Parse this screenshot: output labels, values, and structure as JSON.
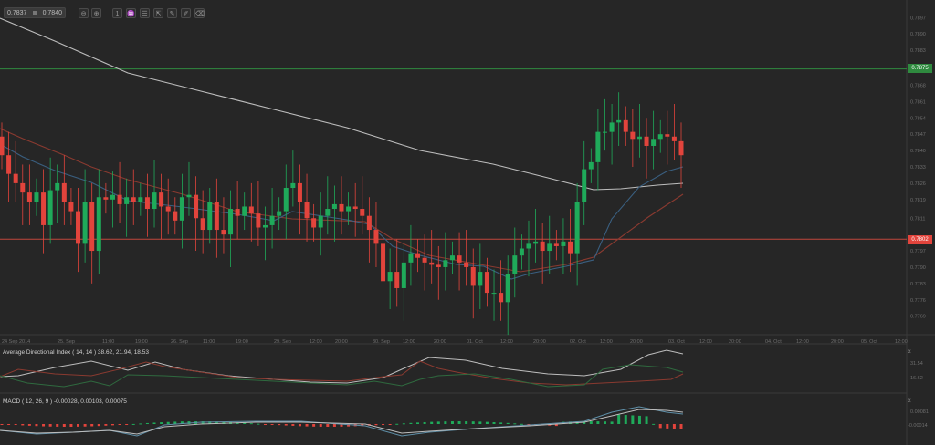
{
  "toolbar": {
    "bid": "0.7837",
    "ask": "0.7840",
    "buttons": [
      {
        "name": "zoom-out-icon",
        "glyph": "⊖"
      },
      {
        "name": "zoom-in-icon",
        "glyph": "⊕"
      },
      {
        "name": "timeframe-icon",
        "glyph": "1"
      },
      {
        "name": "chart-type-icon",
        "glyph": "♒"
      },
      {
        "name": "indicators-icon",
        "glyph": "☰"
      },
      {
        "name": "export-icon",
        "glyph": "⇱"
      },
      {
        "name": "drawing-tools-icon",
        "glyph": "✎"
      },
      {
        "name": "edit-icon",
        "glyph": "✐"
      },
      {
        "name": "clear-icon",
        "glyph": "⌫"
      }
    ]
  },
  "colors": {
    "background": "#262626",
    "grid_line": "#333333",
    "bull": "#1faa5a",
    "bear": "#e2443c",
    "ma_fast": "#3a5f80",
    "ma_mid": "#8a3a30",
    "ma_slow": "#bdbdbd",
    "resistance": "#2f8a3f",
    "support": "#c0473c"
  },
  "price_tags": {
    "resistance": "0.7875",
    "support": "0.7802"
  },
  "adx": {
    "title": "Average Directional Index ( 14, 14 ) 38.62, 21.94, 18.53",
    "axis": [
      "31.54",
      "16.62"
    ]
  },
  "macd": {
    "title": "MACD ( 12, 26, 9 ) -0.00028, 0.00103, 0.00075",
    "axis": [
      "0.00081",
      "-0.00014"
    ]
  },
  "chart_data": {
    "type": "candlestick",
    "title": "",
    "instrument_bid": 0.7837,
    "instrument_ask": 0.784,
    "y_axis_ticks": [
      "0.7897",
      "0.7890",
      "0.7883",
      "0.7868",
      "0.7861",
      "0.7854",
      "0.7847",
      "0.7840",
      "0.7833",
      "0.7826",
      "0.7819",
      "0.7811",
      "0.7797",
      "0.7790",
      "0.7783",
      "0.7776",
      "0.7769"
    ],
    "x_axis_ticks": [
      "24 Sep 2014",
      "25. Sep",
      "11:00",
      "19:00",
      "26. Sep",
      "11:00",
      "19:00",
      "29. Sep",
      "12:00",
      "20:00",
      "30. Sep",
      "12:00",
      "20:00",
      "01. Oct",
      "12:00",
      "20:00",
      "02. Oct",
      "12:00",
      "20:00",
      "03. Oct",
      "12:00",
      "20:00",
      "04. Oct",
      "12:00",
      "20:00",
      "05. Oct",
      "12:00"
    ],
    "ylim": [
      0.7763,
      0.7903
    ],
    "horizontal_lines": [
      {
        "label": "resistance",
        "value": 0.7875,
        "color": "#2f8a3f"
      },
      {
        "label": "support",
        "value": 0.7802,
        "color": "#c0473c"
      }
    ],
    "candles_close": [
      0.7838,
      0.783,
      0.7826,
      0.7822,
      0.7818,
      0.7822,
      0.7808,
      0.7823,
      0.7826,
      0.7818,
      0.7814,
      0.78,
      0.7818,
      0.7797,
      0.782,
      0.7819,
      0.7821,
      0.7817,
      0.782,
      0.7818,
      0.782,
      0.7815,
      0.7822,
      0.7816,
      0.7814,
      0.781,
      0.782,
      0.7821,
      0.7811,
      0.7806,
      0.7818,
      0.7806,
      0.7804,
      0.7815,
      0.7812,
      0.7816,
      0.7813,
      0.7807,
      0.7808,
      0.7812,
      0.7814,
      0.7824,
      0.7826,
      0.7818,
      0.7811,
      0.7807,
      0.7812,
      0.7815,
      0.7817,
      0.7814,
      0.7816,
      0.7815,
      0.7812,
      0.7806,
      0.78,
      0.7784,
      0.7788,
      0.7781,
      0.7792,
      0.7796,
      0.7794,
      0.7792,
      0.7791,
      0.779,
      0.7793,
      0.7795,
      0.7792,
      0.779,
      0.7782,
      0.7788,
      0.7779,
      0.7779,
      0.7775,
      0.7787,
      0.7795,
      0.7798,
      0.78,
      0.7801,
      0.7797,
      0.78,
      0.7799,
      0.7801,
      0.7796,
      0.7818,
      0.7832,
      0.7835,
      0.7848,
      0.7848,
      0.7852,
      0.7853,
      0.7848,
      0.7845,
      0.7846,
      0.7842,
      0.7845,
      0.7847,
      0.7846,
      0.7844,
      0.7838
    ],
    "series": [
      {
        "name": "MA fast (blue)",
        "approx": "declines from ~0.7845 to ~0.7793, rises to ~0.7835"
      },
      {
        "name": "MA mid (red)",
        "approx": "declines from ~0.7850 to ~0.7798, rises to ~0.7822"
      },
      {
        "name": "MA slow (grey)",
        "approx": "declines from ~0.7895 to ~0.7826, flattens ~0.7828"
      }
    ],
    "indicators": [
      {
        "name": "ADX (14,14)",
        "values": {
          "adx": 38.62,
          "plus_di": 21.94,
          "minus_di": 18.53
        }
      },
      {
        "name": "MACD (12,26,9)",
        "values": {
          "histogram": -0.00028,
          "macd": 0.00103,
          "signal": 0.00075
        }
      }
    ]
  }
}
